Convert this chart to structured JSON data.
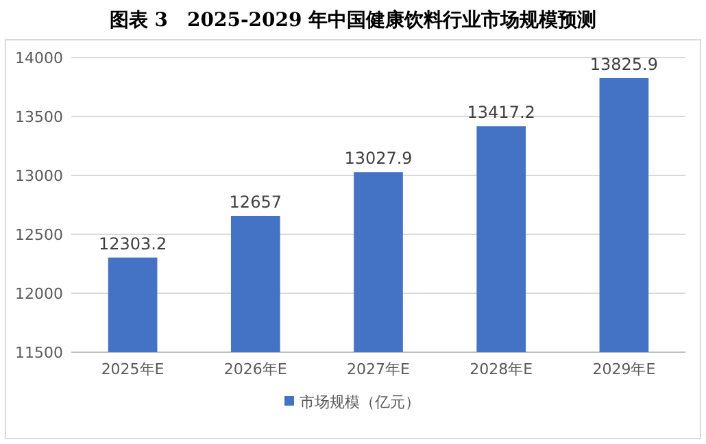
{
  "chart_data": {
    "type": "bar",
    "title": "图表 3　2025-2029 年中国健康饮料行业市场规模预测",
    "categories": [
      "2025年E",
      "2026年E",
      "2027年E",
      "2028年E",
      "2029年E"
    ],
    "series": [
      {
        "name": "市场规模（亿元）",
        "color": "#4472c4",
        "values": [
          12303.2,
          12657,
          13027.9,
          13417.2,
          13825.9
        ]
      }
    ],
    "ylim": [
      11500,
      14000
    ],
    "yticks": [
      11500,
      12000,
      12500,
      13000,
      13500,
      14000
    ],
    "grid": "y",
    "legend": "bottom",
    "data_labels": true
  }
}
